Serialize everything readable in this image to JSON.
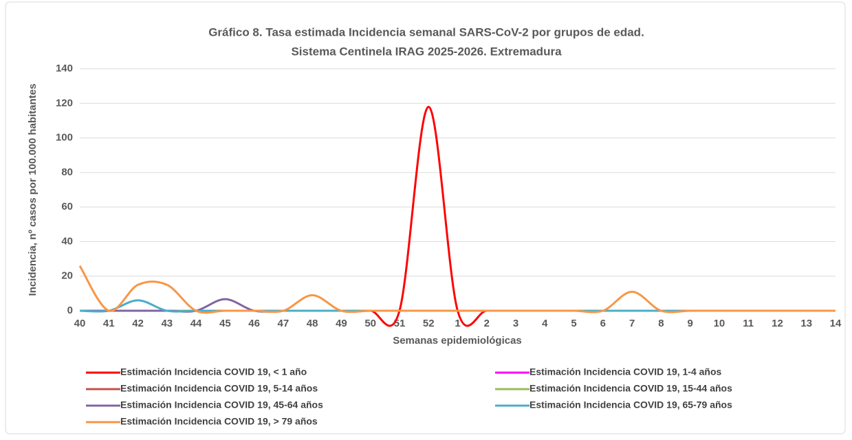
{
  "chart_data": {
    "type": "line",
    "title": "Gráfico 8. Tasa estimada Incidencia semanal SARS-CoV-2 por grupos de edad.",
    "subtitle": "Sistema Centinela IRAG 2025-2026. Extremadura",
    "x_label": "Semanas epidemiológicas",
    "y_label": "Incidencia, nº casos por 100.000 habitantes",
    "categories": [
      "40",
      "41",
      "42",
      "43",
      "44",
      "45",
      "46",
      "47",
      "48",
      "49",
      "50",
      "51",
      "52",
      "1",
      "2",
      "3",
      "4",
      "5",
      "6",
      "7",
      "8",
      "9",
      "10",
      "11",
      "12",
      "13",
      "14"
    ],
    "ylim": [
      0,
      140
    ],
    "yticks": [
      0,
      20,
      40,
      60,
      80,
      100,
      120,
      140
    ],
    "grid": true,
    "smooth": true,
    "legend": "bottom",
    "series": [
      {
        "name": "Estimación Incidencia COVID 19, < 1 año",
        "color": "#ff0000",
        "values": [
          0,
          0,
          0,
          0,
          0,
          0,
          0,
          0,
          0,
          0,
          0,
          0,
          118,
          0,
          0,
          0,
          0,
          0,
          0,
          0,
          0,
          0,
          0,
          0,
          0,
          0,
          0
        ]
      },
      {
        "name": "Estimación Incidencia COVID 19, 1-4 años",
        "color": "#ff00ff",
        "values": [
          0,
          0,
          0,
          0,
          0,
          0,
          0,
          0,
          0,
          0,
          0,
          0,
          0,
          0,
          0,
          0,
          0,
          0,
          0,
          0,
          0,
          0,
          0,
          0,
          0,
          0,
          0
        ]
      },
      {
        "name": "Estimación Incidencia COVID 19, 5-14 años",
        "color": "#c0504d",
        "values": [
          0,
          0,
          0,
          0,
          0,
          0,
          0,
          0,
          0,
          0,
          0,
          0,
          0,
          0,
          0,
          0,
          0,
          0,
          0,
          0,
          0,
          0,
          0,
          0,
          0,
          0,
          0
        ]
      },
      {
        "name": "Estimación Incidencia COVID 19, 15-44 años",
        "color": "#9bbb59",
        "values": [
          0,
          0,
          0,
          0,
          0,
          0,
          0,
          0,
          0,
          0,
          0,
          0,
          0,
          0,
          0,
          0,
          0,
          0,
          0,
          0,
          0,
          0,
          0,
          0,
          0,
          0,
          0
        ]
      },
      {
        "name": "Estimación Incidencia COVID 19, 45-64 años",
        "color": "#8064a2",
        "values": [
          0,
          0,
          0,
          0,
          0,
          6.7,
          0,
          0,
          0,
          0,
          0,
          0,
          0,
          0,
          0,
          0,
          0,
          0,
          0,
          0,
          0,
          0,
          0,
          0,
          0,
          0,
          0
        ]
      },
      {
        "name": "Estimación Incidencia COVID 19, 65-79 años",
        "color": "#4bacc6",
        "values": [
          0,
          0,
          6,
          0,
          0,
          0,
          0,
          0,
          0,
          0,
          0,
          0,
          0,
          0,
          0,
          0,
          0,
          0,
          0,
          0,
          0,
          0,
          0,
          0,
          0,
          0,
          0
        ]
      },
      {
        "name": "Estimación Incidencia COVID 19, > 79 años",
        "color": "#f79646",
        "values": [
          26,
          0,
          15,
          15,
          0,
          0,
          0,
          0,
          9,
          0,
          0,
          0,
          0,
          0,
          0,
          0,
          0,
          0,
          0,
          11,
          0,
          0,
          0,
          0,
          0,
          0,
          0
        ]
      }
    ]
  }
}
